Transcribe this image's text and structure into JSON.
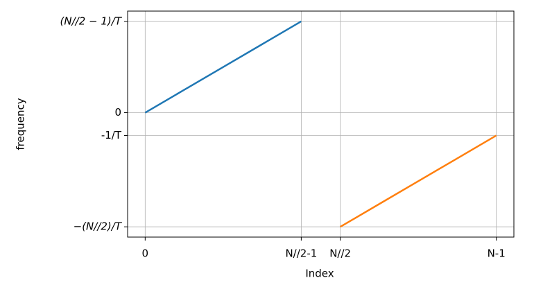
{
  "chart_data": {
    "type": "line",
    "xlabel": "Index",
    "ylabel": "frequency",
    "series": [
      {
        "color": "#1f77b4",
        "x": [
          0,
          1,
          2,
          3,
          4
        ],
        "values": [
          0,
          1,
          2,
          3,
          4
        ]
      },
      {
        "color": "#ff7f0e",
        "x": [
          5,
          6,
          7,
          8,
          9
        ],
        "values": [
          -5,
          -4,
          -3,
          -2,
          -1
        ]
      }
    ],
    "xlim": [
      -0.45,
      9.45
    ],
    "ylim": [
      -5.45,
      4.45
    ],
    "xticks": [
      0,
      {
        "value": 4,
        "label": "N//2-1"
      },
      {
        "value": 5,
        "label": "N//2"
      },
      {
        "value": 9,
        "label": "N-1"
      }
    ],
    "yticks": [
      {
        "value": 4,
        "label": "(N//2 − 1)/T"
      },
      0,
      {
        "value": -1,
        "label": "-1/T"
      },
      {
        "value": -5,
        "label": "−(N//2)/T"
      }
    ],
    "grid": true
  }
}
